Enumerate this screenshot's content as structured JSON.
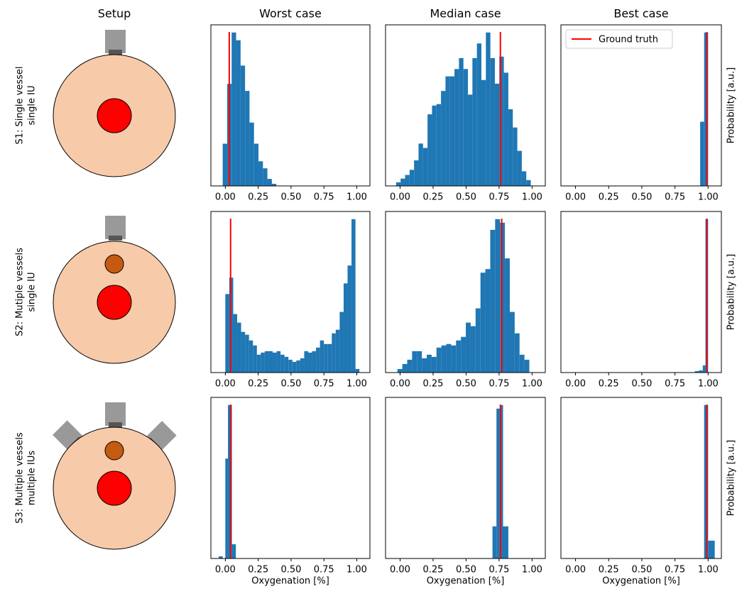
{
  "figure": {
    "column_titles": [
      "Setup",
      "Worst case",
      "Median case",
      "Best case"
    ],
    "row_labels": [
      [
        "S1: Single vessel",
        "single IU"
      ],
      [
        "S2: Mutiple vessels",
        "single IU"
      ],
      [
        "S3: Multiple vessels",
        "multiple IUs"
      ]
    ]
  },
  "chart_data": [
    {
      "type": "histogram",
      "color": "#1f77b4",
      "bins": [
        -0.02,
        0.014,
        0.048,
        0.082,
        0.116,
        0.15,
        0.184,
        0.218,
        0.252,
        0.286,
        0.32,
        0.354,
        0.388
      ],
      "values": [
        60,
        145,
        218,
        207,
        171,
        135,
        90,
        60,
        35,
        25,
        10,
        3
      ],
      "ground_truth": 0.03,
      "ground_truth_color": "#ff0000",
      "xlim": [
        -0.11,
        1.1
      ],
      "xticks": [
        {
          "value": 0,
          "label": "0.00"
        },
        {
          "value": 0.25,
          "label": "0.25"
        },
        {
          "value": 0.5,
          "label": "0.50"
        },
        {
          "value": 0.75,
          "label": "0.75"
        },
        {
          "value": 1,
          "label": "1.00"
        }
      ]
    },
    {
      "type": "histogram",
      "color": "#1f77b4",
      "bins": [
        -0.03,
        0.004,
        0.038,
        0.072,
        0.106,
        0.14,
        0.174,
        0.208,
        0.242,
        0.276,
        0.31,
        0.344,
        0.378,
        0.412,
        0.446,
        0.48,
        0.514,
        0.548,
        0.582,
        0.616,
        0.65,
        0.684,
        0.718,
        0.752,
        0.786,
        0.82,
        0.854,
        0.888,
        0.922,
        0.956,
        0.99
      ],
      "values": [
        5,
        10,
        15,
        22,
        35,
        58,
        52,
        98,
        110,
        112,
        130,
        150,
        150,
        160,
        175,
        160,
        125,
        175,
        195,
        145,
        210,
        175,
        140,
        177,
        155,
        105,
        80,
        48,
        20,
        8
      ],
      "ground_truth": 0.76,
      "ground_truth_color": "#ff0000",
      "xlim": [
        -0.11,
        1.1
      ],
      "xticks": [
        {
          "value": 0,
          "label": "0.00"
        },
        {
          "value": 0.25,
          "label": "0.25"
        },
        {
          "value": 0.5,
          "label": "0.50"
        },
        {
          "value": 0.75,
          "label": "0.75"
        },
        {
          "value": 1,
          "label": "1.00"
        }
      ]
    },
    {
      "type": "histogram",
      "color": "#1f77b4",
      "bins": [
        0.94,
        0.97,
        1.0
      ],
      "values": [
        90,
        215
      ],
      "ground_truth": 0.99,
      "ground_truth_color": "#ff0000",
      "legend_label": "Ground truth",
      "legend": "upper left",
      "ylabel": "Probability [a.u.]",
      "xlim": [
        -0.11,
        1.1
      ],
      "xticks": [
        {
          "value": 0,
          "label": "0.00"
        },
        {
          "value": 0.25,
          "label": "0.25"
        },
        {
          "value": 0.5,
          "label": "0.50"
        },
        {
          "value": 0.75,
          "label": "0.75"
        },
        {
          "value": 1,
          "label": "1.00"
        }
      ]
    },
    {
      "type": "histogram",
      "color": "#1f77b4",
      "bins": [
        0.0,
        0.03,
        0.06,
        0.09,
        0.12,
        0.15,
        0.18,
        0.21,
        0.24,
        0.27,
        0.3,
        0.33,
        0.36,
        0.39,
        0.42,
        0.45,
        0.48,
        0.51,
        0.54,
        0.57,
        0.6,
        0.63,
        0.66,
        0.69,
        0.72,
        0.75,
        0.78,
        0.81,
        0.84,
        0.87,
        0.9,
        0.93,
        0.96,
        0.99,
        1.02
      ],
      "values": [
        110,
        133,
        82,
        70,
        57,
        53,
        45,
        38,
        25,
        28,
        30,
        30,
        28,
        30,
        25,
        22,
        18,
        15,
        17,
        20,
        30,
        28,
        30,
        35,
        45,
        40,
        40,
        55,
        60,
        85,
        125,
        150,
        215,
        5
      ],
      "ground_truth": 0.04,
      "ground_truth_color": "#ff0000",
      "xlim": [
        -0.11,
        1.1
      ],
      "xticks": [
        {
          "value": 0,
          "label": "0.00"
        },
        {
          "value": 0.25,
          "label": "0.25"
        },
        {
          "value": 0.5,
          "label": "0.50"
        },
        {
          "value": 0.75,
          "label": "0.75"
        },
        {
          "value": 1,
          "label": "1.00"
        }
      ]
    },
    {
      "type": "histogram",
      "color": "#1f77b4",
      "bins": [
        -0.02,
        0.017,
        0.054,
        0.091,
        0.128,
        0.165,
        0.202,
        0.239,
        0.276,
        0.313,
        0.35,
        0.387,
        0.424,
        0.461,
        0.498,
        0.535,
        0.572,
        0.609,
        0.646,
        0.683,
        0.72,
        0.757,
        0.794,
        0.831,
        0.868,
        0.905,
        0.942,
        0.979
      ],
      "values": [
        5,
        12,
        18,
        30,
        30,
        20,
        25,
        22,
        35,
        38,
        40,
        38,
        45,
        50,
        70,
        65,
        90,
        140,
        145,
        200,
        215,
        210,
        160,
        85,
        55,
        25,
        18
      ],
      "ground_truth": 0.77,
      "ground_truth_color": "#ff0000",
      "xlim": [
        -0.11,
        1.1
      ],
      "xticks": [
        {
          "value": 0,
          "label": "0.00"
        },
        {
          "value": 0.25,
          "label": "0.25"
        },
        {
          "value": 0.5,
          "label": "0.50"
        },
        {
          "value": 0.75,
          "label": "0.75"
        },
        {
          "value": 1,
          "label": "1.00"
        }
      ]
    },
    {
      "type": "histogram",
      "color": "#1f77b4",
      "bins": [
        0.9,
        0.93,
        0.96,
        0.98,
        1.0
      ],
      "values": [
        2,
        3,
        10,
        215
      ],
      "ground_truth": 0.99,
      "ground_truth_color": "#ff0000",
      "ylabel": "Probability [a.u.]",
      "xlim": [
        -0.11,
        1.1
      ],
      "xticks": [
        {
          "value": 0,
          "label": "0.00"
        },
        {
          "value": 0.25,
          "label": "0.25"
        },
        {
          "value": 0.5,
          "label": "0.50"
        },
        {
          "value": 0.75,
          "label": "0.75"
        },
        {
          "value": 1,
          "label": "1.00"
        }
      ]
    },
    {
      "type": "histogram",
      "color": "#1f77b4",
      "bins": [
        -0.05,
        -0.02,
        0.0,
        0.02,
        0.05,
        0.08
      ],
      "values": [
        3,
        0,
        140,
        215,
        20
      ],
      "ground_truth": 0.04,
      "ground_truth_color": "#ff0000",
      "xlabel": "Oxygenation [%]",
      "xlim": [
        -0.11,
        1.1
      ],
      "xticks": [
        {
          "value": 0,
          "label": "0.00"
        },
        {
          "value": 0.25,
          "label": "0.25"
        },
        {
          "value": 0.5,
          "label": "0.50"
        },
        {
          "value": 0.75,
          "label": "0.75"
        },
        {
          "value": 1,
          "label": "1.00"
        }
      ]
    },
    {
      "type": "histogram",
      "color": "#1f77b4",
      "bins": [
        0.7,
        0.73,
        0.755,
        0.78,
        0.82
      ],
      "values": [
        45,
        210,
        215,
        45
      ],
      "ground_truth": 0.76,
      "ground_truth_color": "#ff0000",
      "xlabel": "Oxygenation [%]",
      "xlim": [
        -0.11,
        1.1
      ],
      "xticks": [
        {
          "value": 0,
          "label": "0.00"
        },
        {
          "value": 0.25,
          "label": "0.25"
        },
        {
          "value": 0.5,
          "label": "0.50"
        },
        {
          "value": 0.75,
          "label": "0.75"
        },
        {
          "value": 1,
          "label": "1.00"
        }
      ]
    },
    {
      "type": "histogram",
      "color": "#1f77b4",
      "bins": [
        0.97,
        1.0,
        1.05
      ],
      "values": [
        215,
        25
      ],
      "ground_truth": 0.99,
      "ground_truth_color": "#ff0000",
      "ylabel": "Probability [a.u.]",
      "xlabel": "Oxygenation [%]",
      "xlim": [
        -0.11,
        1.1
      ],
      "xticks": [
        {
          "value": 0,
          "label": "0.00"
        },
        {
          "value": 0.25,
          "label": "0.25"
        },
        {
          "value": 0.5,
          "label": "0.50"
        },
        {
          "value": 0.75,
          "label": "0.75"
        },
        {
          "value": 1,
          "label": "1.00"
        }
      ]
    }
  ]
}
